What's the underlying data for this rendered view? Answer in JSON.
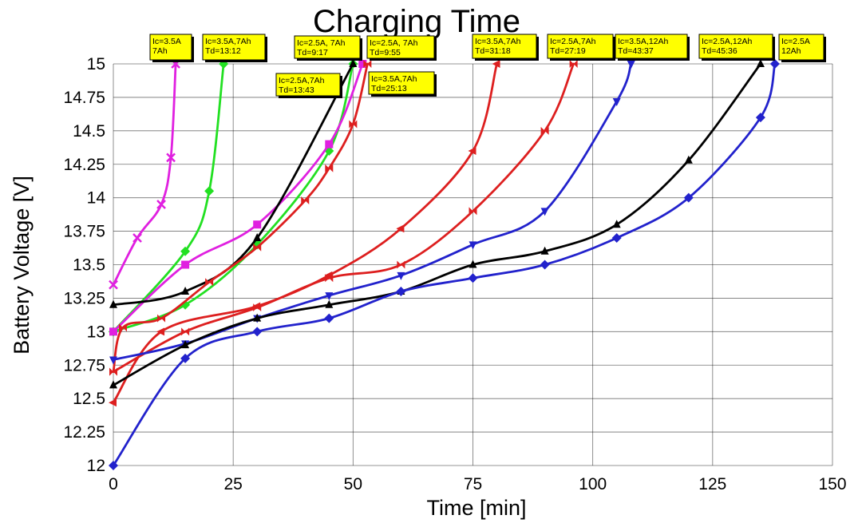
{
  "chart_data": {
    "type": "line",
    "title": "Charging Time",
    "xlabel": "Time [min]",
    "ylabel": "Battery Voltage [V]",
    "xlim": [
      0,
      150
    ],
    "ylim": [
      12,
      15
    ],
    "x_ticks": [
      0,
      25,
      50,
      75,
      100,
      125,
      150
    ],
    "y_ticks": [
      12,
      12.25,
      12.5,
      12.75,
      13,
      13.25,
      13.5,
      13.75,
      14,
      14.25,
      14.5,
      14.75,
      15
    ],
    "y_tick_labels": [
      "12",
      "12.25",
      "12.5",
      "12.75",
      "13",
      "13.25",
      "13.5",
      "13.75",
      "14",
      "14.25",
      "14.5",
      "14.75",
      "15"
    ],
    "grid": true,
    "series": [
      {
        "color": "#e020e0",
        "marker": "x",
        "x": [
          0,
          5,
          10,
          12,
          13
        ],
        "y": [
          13.35,
          13.7,
          13.95,
          14.3,
          15
        ]
      },
      {
        "color": "#22e022",
        "marker": "diamond",
        "x": [
          0,
          15,
          20,
          23
        ],
        "y": [
          13,
          13.6,
          14.05,
          15
        ]
      },
      {
        "color": "#22e022",
        "marker": "diamond",
        "x": [
          0,
          15,
          30,
          45,
          50
        ],
        "y": [
          13,
          13.2,
          13.65,
          14.35,
          15
        ]
      },
      {
        "color": "#e020e0",
        "marker": "square",
        "x": [
          0,
          15,
          30,
          45,
          52
        ],
        "y": [
          13,
          13.5,
          13.8,
          14.4,
          15
        ]
      },
      {
        "color": "#000000",
        "marker": "triangle-up",
        "x": [
          0,
          15,
          30,
          50
        ],
        "y": [
          13.2,
          13.3,
          13.7,
          15
        ]
      },
      {
        "color": "#dd1f1f",
        "marker": "bowtie",
        "x": [
          0,
          2,
          10,
          20,
          30,
          40,
          45,
          50,
          53
        ],
        "y": [
          12.7,
          13.03,
          13.1,
          13.37,
          13.63,
          13.98,
          14.22,
          14.55,
          15
        ]
      },
      {
        "color": "#dd1f1f",
        "marker": "triangle-left",
        "x": [
          0,
          10,
          30,
          45,
          60,
          75,
          80
        ],
        "y": [
          12.47,
          13,
          13.19,
          13.42,
          13.77,
          14.35,
          15
        ]
      },
      {
        "color": "#dd1f1f",
        "marker": "bowtie",
        "x": [
          0,
          15,
          30,
          45,
          60,
          75,
          90,
          96
        ],
        "y": [
          12.7,
          13,
          13.18,
          13.4,
          13.5,
          13.9,
          14.5,
          15
        ]
      },
      {
        "color": "#2222cc",
        "marker": "triangle-down",
        "x": [
          0,
          15,
          30,
          45,
          60,
          75,
          90,
          105,
          108
        ],
        "y": [
          12.79,
          12.91,
          13.1,
          13.27,
          13.42,
          13.65,
          13.9,
          14.72,
          15
        ]
      },
      {
        "color": "#000000",
        "marker": "triangle-up",
        "x": [
          0,
          15,
          30,
          45,
          60,
          75,
          90,
          105,
          120,
          135
        ],
        "y": [
          12.6,
          12.9,
          13.1,
          13.2,
          13.3,
          13.5,
          13.6,
          13.8,
          14.28,
          15
        ]
      },
      {
        "color": "#2222cc",
        "marker": "diamond",
        "x": [
          0,
          15,
          30,
          45,
          60,
          75,
          90,
          105,
          120,
          135,
          138
        ],
        "y": [
          12,
          12.8,
          13,
          13.1,
          13.3,
          13.4,
          13.5,
          13.7,
          14,
          14.6,
          15
        ]
      }
    ],
    "annotations": [
      {
        "lines": [
          "Ic=3.5A",
          "7Ah"
        ],
        "box_color": "#ffff00"
      },
      {
        "lines": [
          "Ic=3.5A,7Ah",
          "Td=13:12"
        ],
        "box_color": "#ffff00"
      },
      {
        "lines": [
          "Ic=2.5A, 7Ah",
          "Td=9:17"
        ],
        "box_color": "#ffff00"
      },
      {
        "lines": [
          "Ic=2.5A, 7Ah",
          "Td=9:55"
        ],
        "box_color": "#ffff00"
      },
      {
        "lines": [
          "Ic=2.5A,7Ah",
          "Td=13:43"
        ],
        "box_color": "#ffff00"
      },
      {
        "lines": [
          "Ic=3.5A,7Ah",
          "Td=25:13"
        ],
        "box_color": "#ffff00"
      },
      {
        "lines": [
          "Ic=3.5A,7Ah",
          "Td=31:18"
        ],
        "box_color": "#ffff00"
      },
      {
        "lines": [
          "Ic=2.5A,7Ah",
          "Td=27:19"
        ],
        "box_color": "#ffff00"
      },
      {
        "lines": [
          "Ic=3.5A,12Ah",
          "Td=43:37"
        ],
        "box_color": "#ffff00"
      },
      {
        "lines": [
          "Ic=2.5A,12Ah",
          "Td=45:36"
        ],
        "box_color": "#ffff00"
      },
      {
        "lines": [
          "Ic=2.5A",
          "12Ah"
        ],
        "box_color": "#ffff00"
      }
    ]
  }
}
